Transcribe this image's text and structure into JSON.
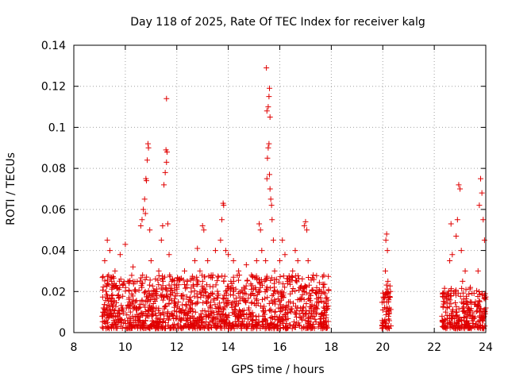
{
  "chart_data": {
    "type": "scatter",
    "title": "Day 118 of 2025, Rate Of TEC Index for receiver kalg",
    "xlabel": "GPS time / hours",
    "ylabel": "ROTI / TECUs",
    "xlim": [
      8,
      24
    ],
    "ylim": [
      0,
      0.14
    ],
    "xticks": [
      8,
      10,
      12,
      14,
      16,
      18,
      20,
      22,
      24
    ],
    "xtick_labels": [
      "8",
      "10",
      "12",
      "14",
      "16",
      "18",
      "20",
      "22",
      "24"
    ],
    "yticks": [
      0,
      0.02,
      0.04,
      0.06,
      0.08,
      0.1,
      0.12,
      0.14
    ],
    "ytick_labels": [
      "0",
      "0.02",
      "0.04",
      "0.06",
      "0.08",
      "0.1",
      "0.12",
      "0.14"
    ],
    "grid": true,
    "marker": "+",
    "color": "#e00000",
    "series": [
      {
        "name": "ROTI",
        "points": [
          [
            9.1,
            0.008
          ],
          [
            9.15,
            0.012
          ],
          [
            9.2,
            0.035
          ],
          [
            9.25,
            0.02
          ],
          [
            9.3,
            0.045
          ],
          [
            9.35,
            0.028
          ],
          [
            9.4,
            0.04
          ],
          [
            9.45,
            0.015
          ],
          [
            9.5,
            0.022
          ],
          [
            9.55,
            0.006
          ],
          [
            9.6,
            0.03
          ],
          [
            9.7,
            0.018
          ],
          [
            9.8,
            0.038
          ],
          [
            9.9,
            0.012
          ],
          [
            10.0,
            0.043
          ],
          [
            10.1,
            0.025
          ],
          [
            10.2,
            0.01
          ],
          [
            10.3,
            0.032
          ],
          [
            10.4,
            0.02
          ],
          [
            10.5,
            0.008
          ],
          [
            10.6,
            0.052
          ],
          [
            10.65,
            0.055
          ],
          [
            10.7,
            0.06
          ],
          [
            10.75,
            0.065
          ],
          [
            10.8,
            0.075
          ],
          [
            10.85,
            0.084
          ],
          [
            10.9,
            0.09
          ],
          [
            10.88,
            0.092
          ],
          [
            10.82,
            0.074
          ],
          [
            10.78,
            0.058
          ],
          [
            10.95,
            0.05
          ],
          [
            11.0,
            0.035
          ],
          [
            11.1,
            0.02
          ],
          [
            11.2,
            0.012
          ],
          [
            11.3,
            0.03
          ],
          [
            11.4,
            0.045
          ],
          [
            11.45,
            0.052
          ],
          [
            11.5,
            0.072
          ],
          [
            11.55,
            0.078
          ],
          [
            11.6,
            0.083
          ],
          [
            11.62,
            0.088
          ],
          [
            11.58,
            0.089
          ],
          [
            11.6,
            0.114
          ],
          [
            11.65,
            0.053
          ],
          [
            11.7,
            0.038
          ],
          [
            11.8,
            0.025
          ],
          [
            11.9,
            0.015
          ],
          [
            12.0,
            0.022
          ],
          [
            12.1,
            0.01
          ],
          [
            12.2,
            0.018
          ],
          [
            12.3,
            0.03
          ],
          [
            12.4,
            0.025
          ],
          [
            12.5,
            0.012
          ],
          [
            12.6,
            0.008
          ],
          [
            12.7,
            0.035
          ],
          [
            12.8,
            0.041
          ],
          [
            12.9,
            0.03
          ],
          [
            13.0,
            0.052
          ],
          [
            13.05,
            0.05
          ],
          [
            13.1,
            0.02
          ],
          [
            13.2,
            0.035
          ],
          [
            13.3,
            0.012
          ],
          [
            13.4,
            0.028
          ],
          [
            13.5,
            0.04
          ],
          [
            13.6,
            0.018
          ],
          [
            13.7,
            0.045
          ],
          [
            13.75,
            0.055
          ],
          [
            13.8,
            0.063
          ],
          [
            13.82,
            0.062
          ],
          [
            13.9,
            0.04
          ],
          [
            14.0,
            0.038
          ],
          [
            14.1,
            0.025
          ],
          [
            14.2,
            0.035
          ],
          [
            14.3,
            0.015
          ],
          [
            14.4,
            0.03
          ],
          [
            14.5,
            0.008
          ],
          [
            14.6,
            0.022
          ],
          [
            14.7,
            0.033
          ],
          [
            14.8,
            0.012
          ],
          [
            14.9,
            0.028
          ],
          [
            15.0,
            0.018
          ],
          [
            15.1,
            0.035
          ],
          [
            15.2,
            0.053
          ],
          [
            15.25,
            0.05
          ],
          [
            15.3,
            0.04
          ],
          [
            15.4,
            0.025
          ],
          [
            15.45,
            0.035
          ],
          [
            15.5,
            0.075
          ],
          [
            15.52,
            0.085
          ],
          [
            15.55,
            0.09
          ],
          [
            15.58,
            0.092
          ],
          [
            15.5,
            0.108
          ],
          [
            15.55,
            0.11
          ],
          [
            15.58,
            0.115
          ],
          [
            15.6,
            0.119
          ],
          [
            15.62,
            0.105
          ],
          [
            15.48,
            0.129
          ],
          [
            15.6,
            0.077
          ],
          [
            15.62,
            0.07
          ],
          [
            15.65,
            0.065
          ],
          [
            15.68,
            0.062
          ],
          [
            15.7,
            0.055
          ],
          [
            15.75,
            0.045
          ],
          [
            15.8,
            0.03
          ],
          [
            15.9,
            0.02
          ],
          [
            16.0,
            0.035
          ],
          [
            16.1,
            0.045
          ],
          [
            16.2,
            0.038
          ],
          [
            16.3,
            0.025
          ],
          [
            16.4,
            0.015
          ],
          [
            16.5,
            0.03
          ],
          [
            16.6,
            0.04
          ],
          [
            16.7,
            0.035
          ],
          [
            16.8,
            0.022
          ],
          [
            16.9,
            0.012
          ],
          [
            16.95,
            0.052
          ],
          [
            17.0,
            0.054
          ],
          [
            17.05,
            0.05
          ],
          [
            17.1,
            0.035
          ],
          [
            17.2,
            0.018
          ],
          [
            17.3,
            0.028
          ],
          [
            17.4,
            0.012
          ],
          [
            17.5,
            0.02
          ],
          [
            17.6,
            0.008
          ],
          [
            17.7,
            0.022
          ],
          [
            17.8,
            0.015
          ],
          [
            20.0,
            0.005
          ],
          [
            20.05,
            0.015
          ],
          [
            20.1,
            0.03
          ],
          [
            20.12,
            0.045
          ],
          [
            20.15,
            0.048
          ],
          [
            20.18,
            0.04
          ],
          [
            20.2,
            0.025
          ],
          [
            20.25,
            0.012
          ],
          [
            20.3,
            0.02
          ],
          [
            20.22,
            0.008
          ],
          [
            22.3,
            0.008
          ],
          [
            22.4,
            0.015
          ],
          [
            22.5,
            0.012
          ],
          [
            22.6,
            0.035
          ],
          [
            22.65,
            0.053
          ],
          [
            22.7,
            0.038
          ],
          [
            22.8,
            0.02
          ],
          [
            22.85,
            0.047
          ],
          [
            22.9,
            0.055
          ],
          [
            22.95,
            0.072
          ],
          [
            23.0,
            0.07
          ],
          [
            23.05,
            0.04
          ],
          [
            23.1,
            0.025
          ],
          [
            23.2,
            0.03
          ],
          [
            23.3,
            0.012
          ],
          [
            23.4,
            0.022
          ],
          [
            23.5,
            0.008
          ],
          [
            23.6,
            0.015
          ],
          [
            23.7,
            0.03
          ],
          [
            23.75,
            0.062
          ],
          [
            23.8,
            0.075
          ],
          [
            23.85,
            0.068
          ],
          [
            23.9,
            0.055
          ],
          [
            23.95,
            0.045
          ],
          [
            24.0,
            0.012
          ]
        ]
      }
    ]
  }
}
